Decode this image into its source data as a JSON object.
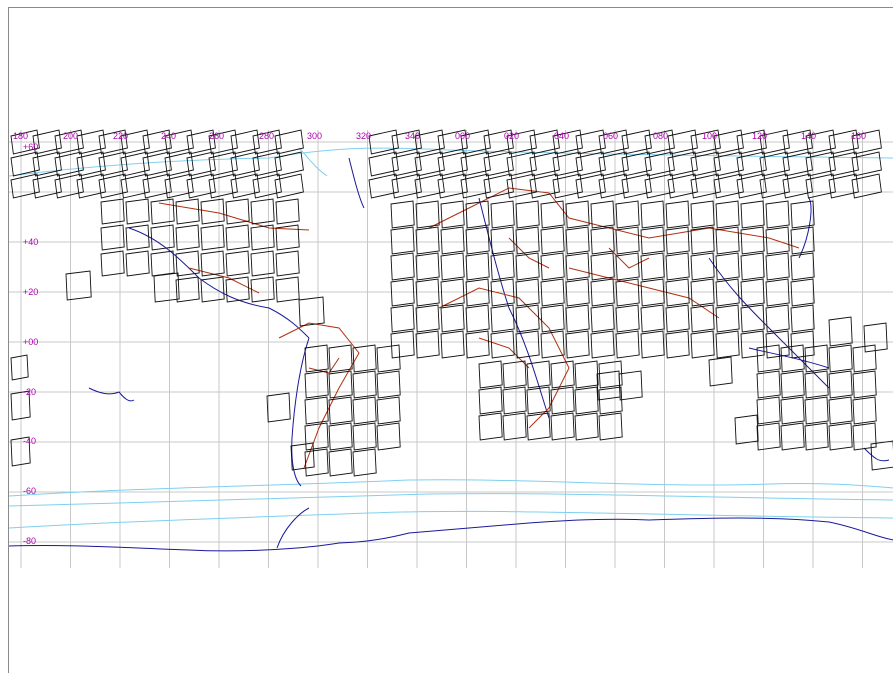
{
  "map": {
    "lon_labels": [
      "180",
      "200",
      "220",
      "240",
      "260",
      "280",
      "300",
      "320",
      "340",
      "000",
      "020",
      "040",
      "060",
      "080",
      "100",
      "120",
      "140",
      "160"
    ],
    "lat_labels": [
      "+60",
      "+40",
      "+20",
      "+00",
      "-20",
      "-40",
      "-60",
      "-80"
    ],
    "colors": {
      "grid": "#c8c8c8",
      "labels": "#b000b0",
      "coastline": "#1a1a9a",
      "political_borders": "#b03010",
      "sea_ice": "#7fd0f0",
      "scene_footprints": "#111111"
    }
  }
}
